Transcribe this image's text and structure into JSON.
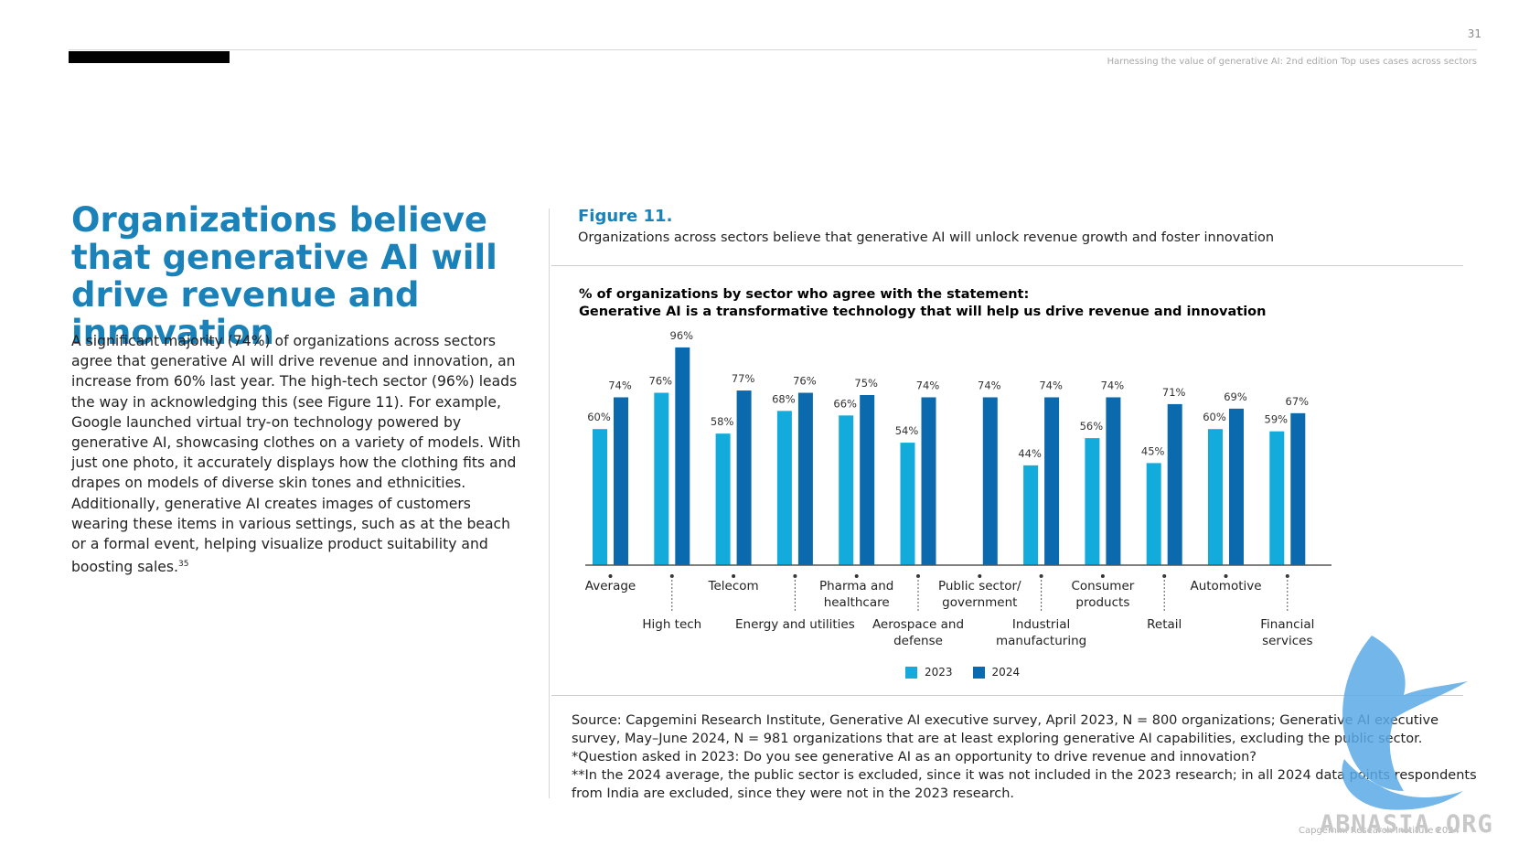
{
  "header": {
    "page_number": "31",
    "running_title": "Harnessing the value of generative AI: 2nd edition Top uses cases across sectors"
  },
  "left": {
    "headline": "Organizations believe that generative AI will drive revenue and innovation",
    "body": "A significant majority (74%) of organizations across sectors agree that generative AI will drive revenue and innovation, an increase from 60% last year. The high-tech sector (96%) leads the way in acknowledging this (see Figure 11). For example, Google launched virtual try-on technology powered by generative AI, showcasing clothes on a variety of models. With just one photo, it accurately displays how the clothing fits and drapes on models of diverse skin tones and ethnicities. Additionally, generative AI creates images of customers wearing these items in various settings, such as at the beach or a formal event, helping visualize product suitability and boosting sales.",
    "footnote_ref": "35"
  },
  "figure": {
    "label": "Figure 11.",
    "caption": "Organizations across sectors believe that generative AI will unlock revenue growth and foster innovation",
    "heading_line1": "% of organizations by sector who agree with the statement:",
    "heading_line2": "Generative AI is a transformative technology that will help us drive revenue and innovation"
  },
  "chart_data": {
    "type": "bar",
    "categories": [
      {
        "line1": "Average",
        "line2": ""
      },
      {
        "line1": "High tech",
        "line2": ""
      },
      {
        "line1": "Telecom",
        "line2": ""
      },
      {
        "line1": "Energy and utilities",
        "line2": ""
      },
      {
        "line1": "Pharma and",
        "line2": "healthcare"
      },
      {
        "line1": "Aerospace and",
        "line2": "defense"
      },
      {
        "line1": "Public sector/",
        "line2": "government"
      },
      {
        "line1": "Industrial",
        "line2": "manufacturing"
      },
      {
        "line1": "Consumer",
        "line2": "products"
      },
      {
        "line1": "Retail",
        "line2": ""
      },
      {
        "line1": "Automotive",
        "line2": ""
      },
      {
        "line1": "Financial",
        "line2": "services"
      }
    ],
    "series": [
      {
        "name": "2023",
        "color": "#12abdb",
        "values": [
          60,
          76,
          58,
          68,
          66,
          54,
          null,
          44,
          56,
          45,
          60,
          59
        ]
      },
      {
        "name": "2024",
        "color": "#0b6aad",
        "values": [
          74,
          96,
          77,
          76,
          75,
          74,
          74,
          74,
          74,
          71,
          69,
          67
        ]
      }
    ],
    "value_suffix": "%",
    "ylim": [
      0,
      100
    ],
    "grid": false,
    "legend_position": "bottom-center"
  },
  "notes": {
    "source": "Source: Capgemini Research Institute, Generative AI executive survey, April 2023, N = 800 organizations; Generative AI executive survey, May–June 2024, N = 981 organizations that are at least exploring generative AI capabilities, excluding the public sector.",
    "note1": "*Question asked in 2023: Do you see generative AI as an opportunity to drive revenue and innovation?",
    "note2": "**In the 2024 average, the public sector is excluded, since it was not included in the 2023 research; in all 2024 data points respondents from India are excluded, since they were not in the 2023 research."
  },
  "footer": {
    "copyright": "Capgemini Research Institute 2024",
    "watermark": "ABNASIA.ORG"
  }
}
